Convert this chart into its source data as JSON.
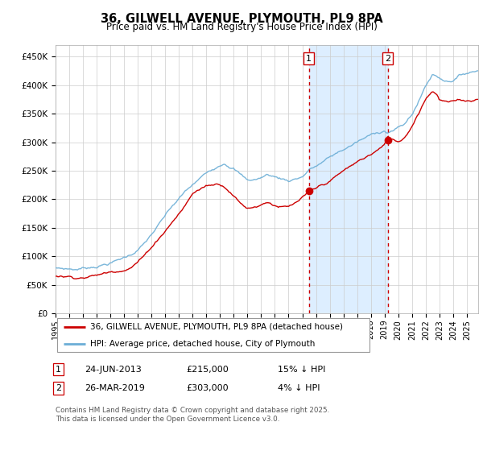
{
  "title": "36, GILWELL AVENUE, PLYMOUTH, PL9 8PA",
  "subtitle": "Price paid vs. HM Land Registry's House Price Index (HPI)",
  "legend_line1": "36, GILWELL AVENUE, PLYMOUTH, PL9 8PA (detached house)",
  "legend_line2": "HPI: Average price, detached house, City of Plymouth",
  "annotation1_date": "24-JUN-2013",
  "annotation1_price": "£215,000",
  "annotation1_hpi": "15% ↓ HPI",
  "annotation1_year": 2013.48,
  "annotation1_value": 215000,
  "annotation2_date": "26-MAR-2019",
  "annotation2_price": "£303,000",
  "annotation2_hpi": "4% ↓ HPI",
  "annotation2_year": 2019.23,
  "annotation2_value": 303000,
  "footer": "Contains HM Land Registry data © Crown copyright and database right 2025.\nThis data is licensed under the Open Government Licence v3.0.",
  "hpi_color": "#6baed6",
  "price_color": "#cc0000",
  "shade_color": "#ddeeff",
  "dashed_line_color": "#cc0000",
  "ylim": [
    0,
    470000
  ],
  "xlim_start": 1995.0,
  "xlim_end": 2025.83,
  "ylabel_ticks": [
    0,
    50000,
    100000,
    150000,
    200000,
    250000,
    300000,
    350000,
    400000,
    450000
  ],
  "xtick_years": [
    1995,
    1996,
    1997,
    1998,
    1999,
    2000,
    2001,
    2002,
    2003,
    2004,
    2005,
    2006,
    2007,
    2008,
    2009,
    2010,
    2011,
    2012,
    2013,
    2014,
    2015,
    2016,
    2017,
    2018,
    2019,
    2020,
    2021,
    2022,
    2023,
    2024,
    2025
  ]
}
